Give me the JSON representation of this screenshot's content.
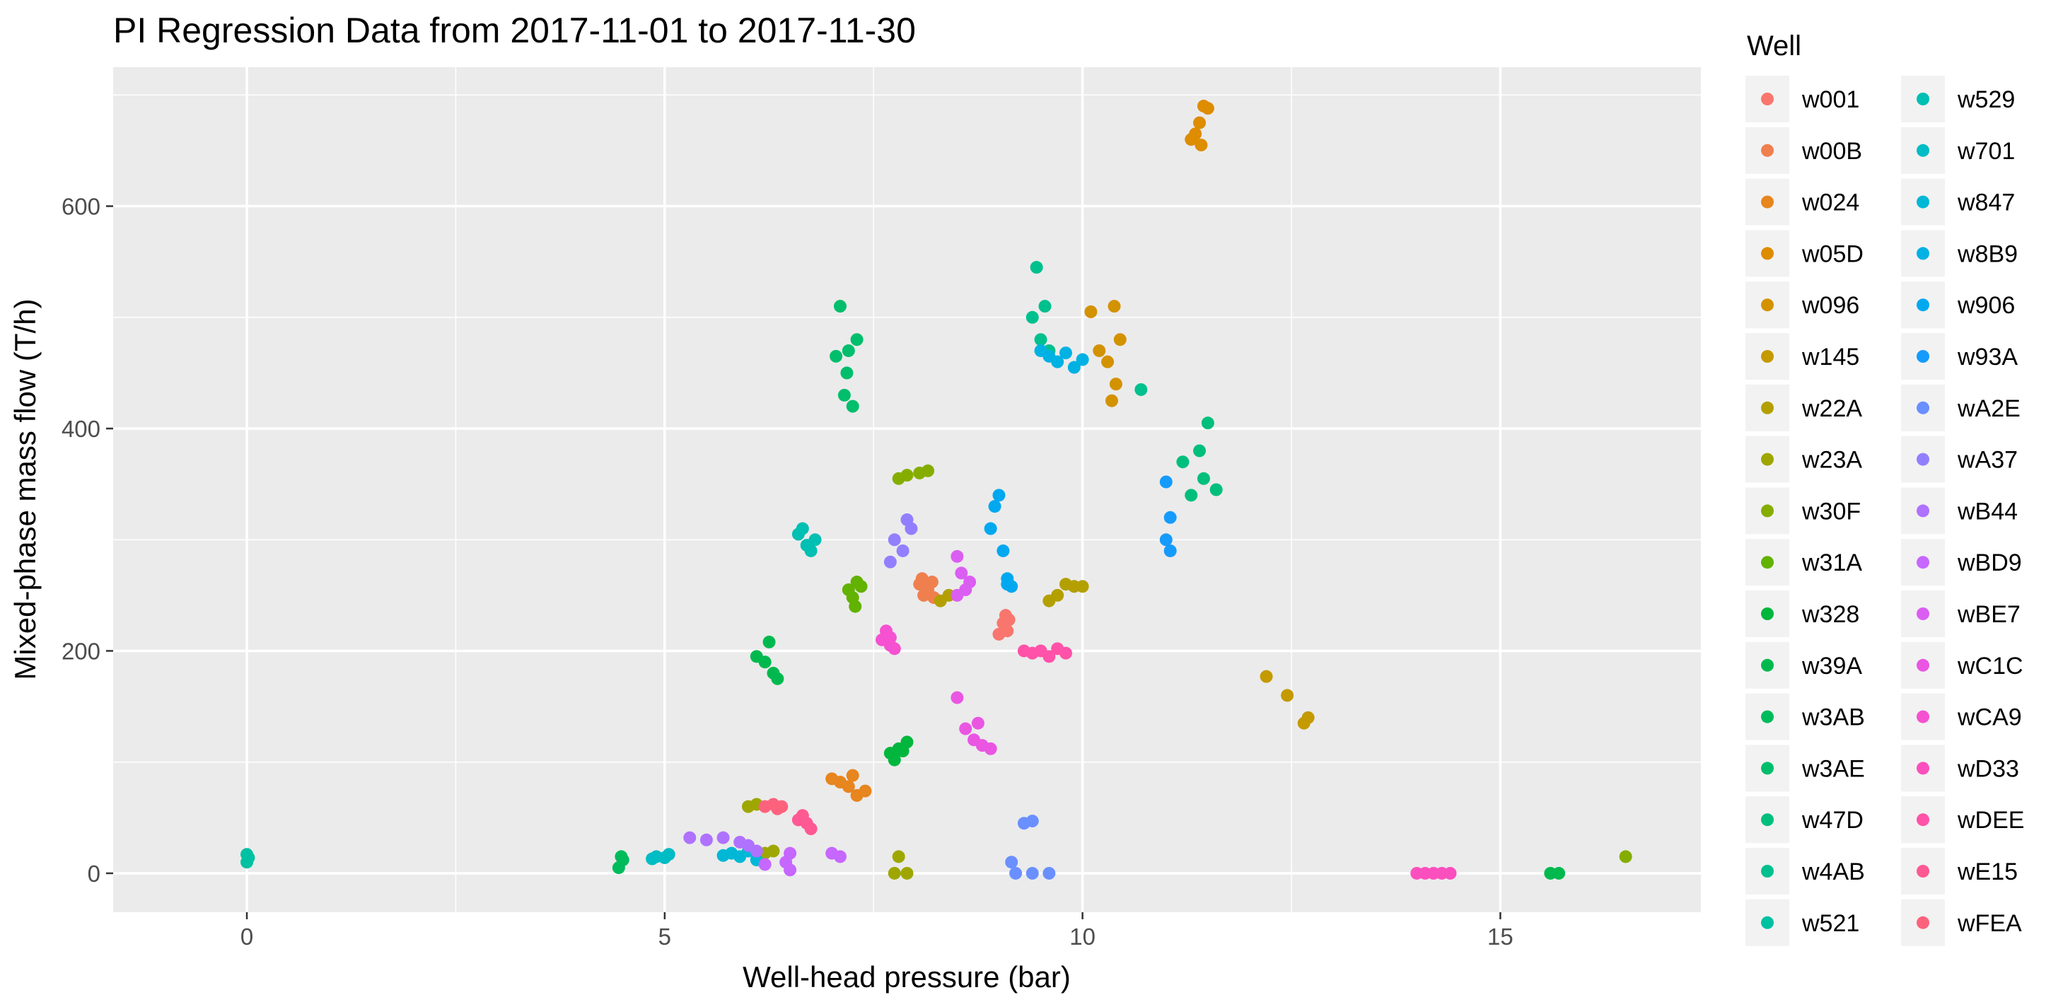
{
  "chart_data": {
    "type": "scatter",
    "title": "PI Regression Data from 2017-11-01 to 2017-11-30",
    "xlabel": "Well-head pressure (bar)",
    "ylabel": "Mixed-phase mass flow (T/h)",
    "xlim": [
      -1.6,
      17.4
    ],
    "ylim": [
      -35,
      725
    ],
    "x_ticks": [
      0,
      5,
      10,
      15
    ],
    "y_ticks": [
      0,
      200,
      400,
      600
    ],
    "grid": true,
    "legend": {
      "title": "Well",
      "placement": "right",
      "columns": 2
    },
    "series": [
      {
        "name": "w001",
        "color": "#F8766D",
        "points": [
          [
            9.05,
            225
          ],
          [
            9.1,
            218
          ],
          [
            9.08,
            232
          ],
          [
            9.0,
            215
          ],
          [
            9.12,
            228
          ]
        ]
      },
      {
        "name": "w00B",
        "color": "#F07F4E",
        "points": [
          [
            8.05,
            260
          ],
          [
            8.1,
            250
          ],
          [
            8.15,
            255
          ],
          [
            8.2,
            262
          ],
          [
            8.08,
            265
          ],
          [
            8.22,
            248
          ]
        ]
      },
      {
        "name": "w024",
        "color": "#E7851E",
        "points": [
          [
            7.1,
            82
          ],
          [
            7.2,
            78
          ],
          [
            7.3,
            70
          ],
          [
            7.4,
            74
          ],
          [
            7.25,
            88
          ],
          [
            7.0,
            85
          ]
        ]
      },
      {
        "name": "w05D",
        "color": "#DE8C00",
        "points": [
          [
            11.3,
            660
          ],
          [
            11.4,
            675
          ],
          [
            11.45,
            690
          ],
          [
            11.35,
            665
          ],
          [
            11.5,
            688
          ],
          [
            11.42,
            655
          ]
        ]
      },
      {
        "name": "w096",
        "color": "#D39200",
        "points": [
          [
            10.1,
            505
          ],
          [
            10.3,
            460
          ],
          [
            10.4,
            440
          ],
          [
            10.35,
            425
          ],
          [
            10.45,
            480
          ],
          [
            10.2,
            470
          ],
          [
            10.38,
            510
          ]
        ]
      },
      {
        "name": "w145",
        "color": "#C49A00",
        "points": [
          [
            12.2,
            177
          ],
          [
            12.45,
            160
          ],
          [
            12.65,
            135
          ],
          [
            12.7,
            140
          ]
        ]
      },
      {
        "name": "w22A",
        "color": "#B3A000",
        "points": [
          [
            8.3,
            245
          ],
          [
            8.4,
            250
          ],
          [
            9.7,
            250
          ],
          [
            9.8,
            260
          ],
          [
            9.9,
            258
          ],
          [
            9.6,
            245
          ],
          [
            10.0,
            258
          ]
        ]
      },
      {
        "name": "w23A",
        "color": "#9EA700",
        "points": [
          [
            6.0,
            60
          ],
          [
            6.1,
            62
          ],
          [
            6.3,
            20
          ],
          [
            6.2,
            18
          ],
          [
            7.8,
            15
          ],
          [
            7.75,
            0
          ],
          [
            7.9,
            0
          ]
        ]
      },
      {
        "name": "w30F",
        "color": "#85AD00",
        "points": [
          [
            7.8,
            355
          ],
          [
            7.9,
            358
          ],
          [
            8.05,
            360
          ],
          [
            8.15,
            362
          ],
          [
            16.5,
            15
          ]
        ]
      },
      {
        "name": "w31A",
        "color": "#62B200",
        "points": [
          [
            7.2,
            255
          ],
          [
            7.25,
            248
          ],
          [
            7.3,
            262
          ],
          [
            7.28,
            240
          ],
          [
            7.35,
            258
          ]
        ]
      },
      {
        "name": "w328",
        "color": "#00B63D",
        "points": [
          [
            7.7,
            108
          ],
          [
            7.8,
            112
          ],
          [
            7.9,
            118
          ],
          [
            7.75,
            102
          ],
          [
            7.85,
            110
          ]
        ]
      },
      {
        "name": "w39A",
        "color": "#00B94E",
        "points": [
          [
            6.1,
            195
          ],
          [
            6.2,
            190
          ],
          [
            6.3,
            180
          ],
          [
            6.35,
            175
          ],
          [
            6.25,
            208
          ],
          [
            15.6,
            0
          ],
          [
            15.7,
            0
          ]
        ]
      },
      {
        "name": "w3AB",
        "color": "#00BB5C",
        "points": [
          [
            4.45,
            5
          ],
          [
            4.5,
            12
          ],
          [
            4.48,
            15
          ]
        ]
      },
      {
        "name": "w3AE",
        "color": "#00BE6C",
        "points": [
          [
            7.1,
            510
          ],
          [
            7.2,
            470
          ],
          [
            7.15,
            430
          ],
          [
            7.25,
            420
          ],
          [
            7.05,
            465
          ],
          [
            7.3,
            480
          ],
          [
            7.18,
            450
          ]
        ]
      },
      {
        "name": "w47D",
        "color": "#00BF7D",
        "points": [
          [
            11.2,
            370
          ],
          [
            11.4,
            380
          ],
          [
            11.5,
            405
          ],
          [
            11.6,
            345
          ],
          [
            11.45,
            355
          ],
          [
            11.3,
            340
          ]
        ]
      },
      {
        "name": "w4AB",
        "color": "#00C08E",
        "points": [
          [
            9.4,
            500
          ],
          [
            9.5,
            480
          ],
          [
            9.45,
            545
          ],
          [
            9.55,
            510
          ],
          [
            9.6,
            470
          ],
          [
            10.7,
            435
          ]
        ]
      },
      {
        "name": "w521",
        "color": "#00C1A1",
        "points": [
          [
            0.0,
            17
          ],
          [
            0.0,
            10
          ],
          [
            0.02,
            14
          ]
        ]
      },
      {
        "name": "w529",
        "color": "#00BFB3",
        "points": [
          [
            6.6,
            305
          ],
          [
            6.7,
            295
          ],
          [
            6.75,
            290
          ],
          [
            6.8,
            300
          ],
          [
            6.65,
            310
          ]
        ]
      },
      {
        "name": "w701",
        "color": "#00BCC4",
        "points": [
          [
            4.9,
            15
          ],
          [
            5.0,
            14
          ],
          [
            5.05,
            17
          ],
          [
            4.85,
            13
          ]
        ]
      },
      {
        "name": "w847",
        "color": "#00B8D5",
        "points": [
          [
            5.8,
            18
          ],
          [
            5.9,
            15
          ],
          [
            6.0,
            20
          ],
          [
            6.1,
            12
          ],
          [
            5.7,
            16
          ]
        ]
      },
      {
        "name": "w8B9",
        "color": "#00B1E3",
        "points": [
          [
            9.5,
            470
          ],
          [
            9.6,
            465
          ],
          [
            9.7,
            460
          ],
          [
            9.8,
            468
          ],
          [
            9.9,
            455
          ],
          [
            10.0,
            462
          ]
        ]
      },
      {
        "name": "w906",
        "color": "#00A8F0",
        "points": [
          [
            8.9,
            310
          ],
          [
            8.95,
            330
          ],
          [
            9.05,
            290
          ],
          [
            9.1,
            260
          ],
          [
            9.15,
            258
          ],
          [
            9.0,
            340
          ],
          [
            9.1,
            265
          ]
        ]
      },
      {
        "name": "w93A",
        "color": "#159BFC",
        "points": [
          [
            11.0,
            352
          ],
          [
            11.05,
            320
          ],
          [
            11.0,
            300
          ],
          [
            11.05,
            290
          ]
        ]
      },
      {
        "name": "wA2E",
        "color": "#6A8FFF",
        "points": [
          [
            9.3,
            45
          ],
          [
            9.4,
            47
          ],
          [
            9.2,
            0
          ],
          [
            9.4,
            0
          ],
          [
            9.6,
            0
          ],
          [
            9.15,
            10
          ]
        ]
      },
      {
        "name": "wA37",
        "color": "#927FFF",
        "points": [
          [
            7.75,
            300
          ],
          [
            7.85,
            290
          ],
          [
            7.95,
            310
          ],
          [
            7.7,
            280
          ],
          [
            7.9,
            318
          ]
        ]
      },
      {
        "name": "wB44",
        "color": "#AF72FF",
        "points": [
          [
            5.3,
            32
          ],
          [
            5.5,
            30
          ],
          [
            5.7,
            32
          ],
          [
            5.9,
            28
          ],
          [
            6.0,
            25
          ],
          [
            6.1,
            20
          ]
        ]
      },
      {
        "name": "wBD9",
        "color": "#C667FF",
        "points": [
          [
            6.5,
            18
          ],
          [
            6.45,
            10
          ],
          [
            6.5,
            3
          ],
          [
            7.0,
            18
          ],
          [
            7.1,
            15
          ],
          [
            6.2,
            8
          ]
        ]
      },
      {
        "name": "wBE7",
        "color": "#DB5EF2",
        "points": [
          [
            8.5,
            285
          ],
          [
            8.55,
            270
          ],
          [
            8.6,
            255
          ],
          [
            8.65,
            262
          ],
          [
            8.5,
            250
          ]
        ]
      },
      {
        "name": "wC1C",
        "color": "#EA56E2",
        "points": [
          [
            8.6,
            130
          ],
          [
            8.7,
            120
          ],
          [
            8.8,
            115
          ],
          [
            8.9,
            112
          ],
          [
            8.75,
            135
          ],
          [
            8.5,
            158
          ]
        ]
      },
      {
        "name": "wCA9",
        "color": "#F551D1",
        "points": [
          [
            7.6,
            210
          ],
          [
            7.7,
            205
          ],
          [
            7.65,
            218
          ],
          [
            7.75,
            202
          ],
          [
            7.7,
            212
          ]
        ]
      },
      {
        "name": "wD33",
        "color": "#FB4FBD",
        "points": [
          [
            14.0,
            0
          ],
          [
            14.1,
            0
          ],
          [
            14.2,
            0
          ],
          [
            14.3,
            0
          ],
          [
            14.4,
            0
          ]
        ]
      },
      {
        "name": "wDEE",
        "color": "#FF52A8",
        "points": [
          [
            9.3,
            200
          ],
          [
            9.4,
            198
          ],
          [
            9.5,
            200
          ],
          [
            9.6,
            195
          ],
          [
            9.7,
            202
          ],
          [
            9.8,
            198
          ]
        ]
      },
      {
        "name": "wE15",
        "color": "#FF5993",
        "points": [
          [
            6.6,
            48
          ],
          [
            6.7,
            45
          ],
          [
            6.65,
            52
          ],
          [
            6.75,
            40
          ]
        ]
      },
      {
        "name": "wFEA",
        "color": "#FD627D",
        "points": [
          [
            6.3,
            62
          ],
          [
            6.35,
            58
          ],
          [
            6.4,
            60
          ],
          [
            6.2,
            60
          ]
        ]
      }
    ]
  }
}
